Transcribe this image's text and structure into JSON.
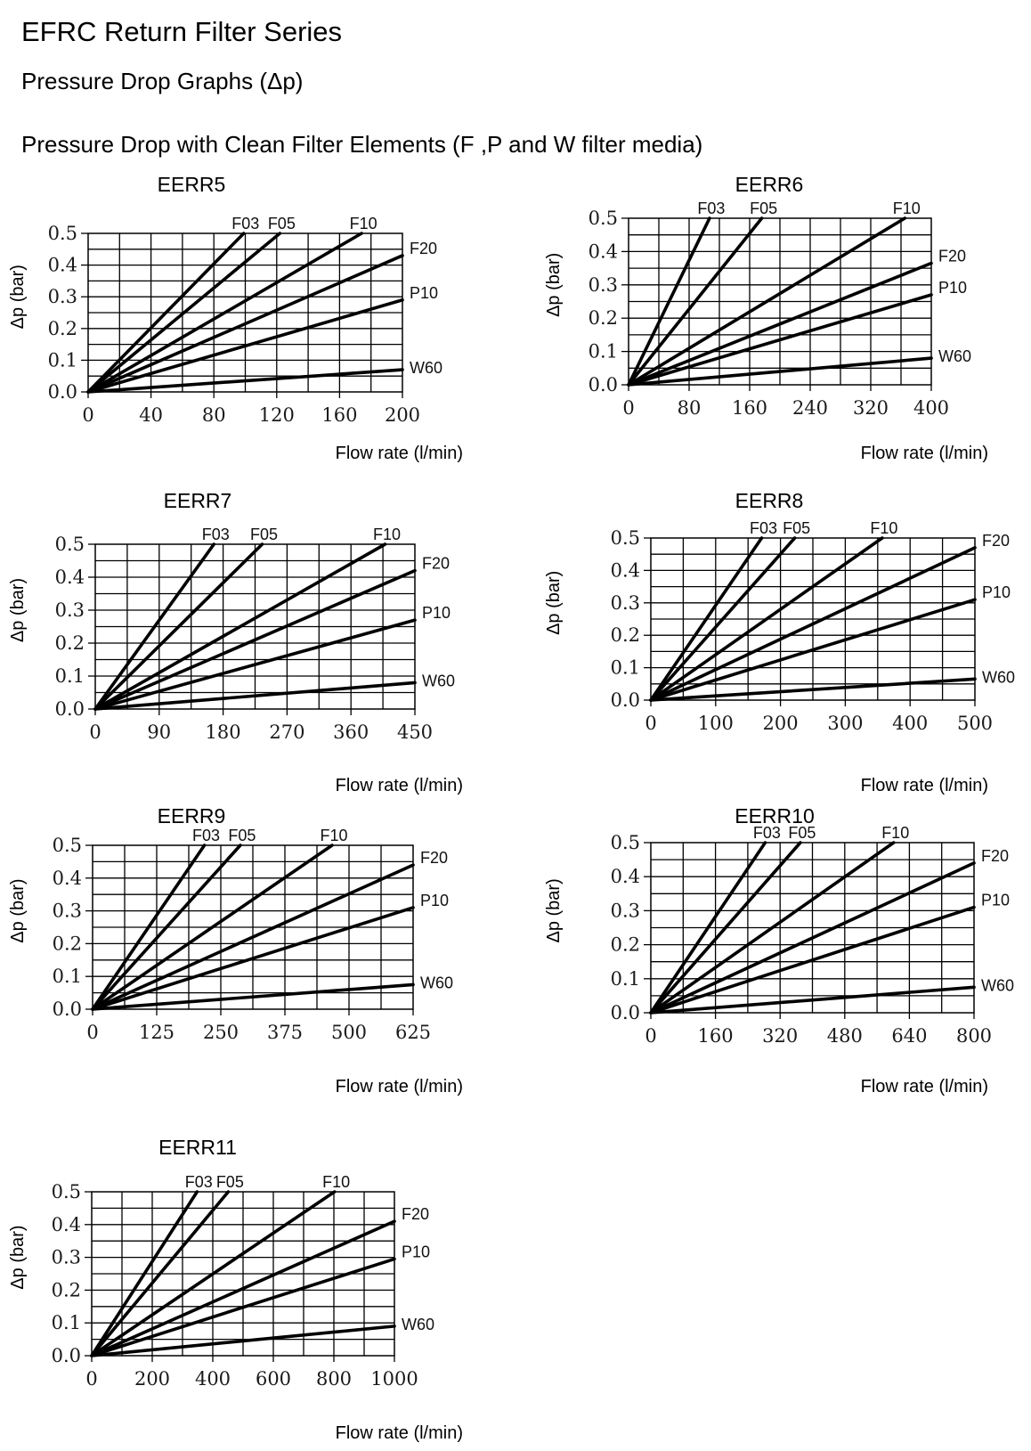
{
  "header": {
    "title": "EFRC Return Filter Series",
    "subtitle": "Pressure Drop Graphs (Δp)",
    "section": "Pressure Drop with Clean Filter Elements (F ,P and W filter media)"
  },
  "chart_data": [
    {
      "type": "line",
      "title": "EERR5",
      "xlabel": "Flow rate (l/min)",
      "ylabel": "Δp (bar)",
      "xlim": [
        0,
        200
      ],
      "ylim": [
        0,
        0.5
      ],
      "xticks": [
        "0",
        "40",
        "80",
        "120",
        "160",
        "200"
      ],
      "yticks": [
        "0.0",
        "0.1",
        "0.2",
        "0.3",
        "0.4",
        "0.5"
      ],
      "grid": true,
      "series": [
        {
          "name": "F03",
          "x": [
            0,
            99
          ],
          "y": [
            0,
            0.5
          ]
        },
        {
          "name": "F05",
          "x": [
            0,
            122
          ],
          "y": [
            0,
            0.5
          ]
        },
        {
          "name": "F10",
          "x": [
            0,
            174
          ],
          "y": [
            0,
            0.5
          ]
        },
        {
          "name": "F20",
          "x": [
            0,
            200
          ],
          "y": [
            0,
            0.43
          ]
        },
        {
          "name": "P10",
          "x": [
            0,
            200
          ],
          "y": [
            0,
            0.29
          ]
        },
        {
          "name": "W60",
          "x": [
            0,
            200
          ],
          "y": [
            0,
            0.07
          ]
        }
      ]
    },
    {
      "type": "line",
      "title": "EERR6",
      "xlabel": "Flow rate (l/min)",
      "ylabel": "Δp (bar)",
      "xlim": [
        0,
        400
      ],
      "ylim": [
        0,
        0.5
      ],
      "xticks": [
        "0",
        "80",
        "160",
        "240",
        "320",
        "400"
      ],
      "yticks": [
        "0.0",
        "0.1",
        "0.2",
        "0.3",
        "0.4",
        "0.5"
      ],
      "grid": true,
      "series": [
        {
          "name": "F03",
          "x": [
            0,
            107
          ],
          "y": [
            0,
            0.5
          ]
        },
        {
          "name": "F05",
          "x": [
            0,
            176
          ],
          "y": [
            0,
            0.5
          ]
        },
        {
          "name": "F10",
          "x": [
            0,
            365
          ],
          "y": [
            0,
            0.5
          ]
        },
        {
          "name": "F20",
          "x": [
            0,
            400
          ],
          "y": [
            0,
            0.365
          ]
        },
        {
          "name": "P10",
          "x": [
            0,
            400
          ],
          "y": [
            0,
            0.27
          ]
        },
        {
          "name": "W60",
          "x": [
            0,
            400
          ],
          "y": [
            0,
            0.08
          ]
        }
      ]
    },
    {
      "type": "line",
      "title": "EERR7",
      "xlabel": "Flow rate (l/min)",
      "ylabel": "Δp (bar)",
      "xlim": [
        0,
        450
      ],
      "ylim": [
        0,
        0.5
      ],
      "xticks": [
        "0",
        "90",
        "180",
        "270",
        "360",
        "450"
      ],
      "yticks": [
        "0.0",
        "0.1",
        "0.2",
        "0.3",
        "0.4",
        "0.5"
      ],
      "grid": true,
      "series": [
        {
          "name": "F03",
          "x": [
            0,
            167
          ],
          "y": [
            0,
            0.5
          ]
        },
        {
          "name": "F05",
          "x": [
            0,
            235
          ],
          "y": [
            0,
            0.5
          ]
        },
        {
          "name": "F10",
          "x": [
            0,
            408
          ],
          "y": [
            0,
            0.5
          ]
        },
        {
          "name": "F20",
          "x": [
            0,
            450
          ],
          "y": [
            0,
            0.42
          ]
        },
        {
          "name": "P10",
          "x": [
            0,
            450
          ],
          "y": [
            0,
            0.27
          ]
        },
        {
          "name": "W60",
          "x": [
            0,
            450
          ],
          "y": [
            0,
            0.08
          ]
        }
      ]
    },
    {
      "type": "line",
      "title": "EERR8",
      "xlabel": "Flow rate (l/min)",
      "ylabel": "Δp (bar)",
      "xlim": [
        0,
        500
      ],
      "ylim": [
        0,
        0.5
      ],
      "xticks": [
        "0",
        "100",
        "200",
        "300",
        "400",
        "500"
      ],
      "yticks": [
        "0.0",
        "0.1",
        "0.2",
        "0.3",
        "0.4",
        "0.5"
      ],
      "grid": true,
      "series": [
        {
          "name": "F03",
          "x": [
            0,
            171
          ],
          "y": [
            0,
            0.5
          ]
        },
        {
          "name": "F05",
          "x": [
            0,
            222
          ],
          "y": [
            0,
            0.5
          ]
        },
        {
          "name": "F10",
          "x": [
            0,
            357
          ],
          "y": [
            0,
            0.5
          ]
        },
        {
          "name": "F20",
          "x": [
            0,
            500
          ],
          "y": [
            0,
            0.47
          ]
        },
        {
          "name": "P10",
          "x": [
            0,
            500
          ],
          "y": [
            0,
            0.31
          ]
        },
        {
          "name": "W60",
          "x": [
            0,
            500
          ],
          "y": [
            0,
            0.065
          ]
        }
      ]
    },
    {
      "type": "line",
      "title": "EERR9",
      "xlabel": "Flow rate (l/min)",
      "ylabel": "Δp (bar)",
      "xlim": [
        0,
        625
      ],
      "ylim": [
        0,
        0.5
      ],
      "xticks": [
        "0",
        "125",
        "250",
        "375",
        "500",
        "625"
      ],
      "yticks": [
        "0.0",
        "0.1",
        "0.2",
        "0.3",
        "0.4",
        "0.5"
      ],
      "grid": true,
      "series": [
        {
          "name": "F03",
          "x": [
            0,
            218
          ],
          "y": [
            0,
            0.5
          ]
        },
        {
          "name": "F05",
          "x": [
            0,
            288
          ],
          "y": [
            0,
            0.5
          ]
        },
        {
          "name": "F10",
          "x": [
            0,
            467
          ],
          "y": [
            0,
            0.5
          ]
        },
        {
          "name": "F20",
          "x": [
            0,
            625
          ],
          "y": [
            0,
            0.44
          ]
        },
        {
          "name": "P10",
          "x": [
            0,
            625
          ],
          "y": [
            0,
            0.31
          ]
        },
        {
          "name": "W60",
          "x": [
            0,
            625
          ],
          "y": [
            0,
            0.075
          ]
        }
      ]
    },
    {
      "type": "line",
      "title": "EERR10",
      "xlabel": "Flow rate (l/min)",
      "ylabel": "Δp (bar)",
      "xlim": [
        0,
        800
      ],
      "ylim": [
        0,
        0.5
      ],
      "xticks": [
        "0",
        "160",
        "320",
        "480",
        "640",
        "800"
      ],
      "yticks": [
        "0.0",
        "0.1",
        "0.2",
        "0.3",
        "0.4",
        "0.5"
      ],
      "grid": true,
      "series": [
        {
          "name": "F03",
          "x": [
            0,
            283
          ],
          "y": [
            0,
            0.5
          ]
        },
        {
          "name": "F05",
          "x": [
            0,
            370
          ],
          "y": [
            0,
            0.5
          ]
        },
        {
          "name": "F10",
          "x": [
            0,
            601
          ],
          "y": [
            0,
            0.5
          ]
        },
        {
          "name": "F20",
          "x": [
            0,
            800
          ],
          "y": [
            0,
            0.44
          ]
        },
        {
          "name": "P10",
          "x": [
            0,
            800
          ],
          "y": [
            0,
            0.31
          ]
        },
        {
          "name": "W60",
          "x": [
            0,
            800
          ],
          "y": [
            0,
            0.075
          ]
        }
      ]
    },
    {
      "type": "line",
      "title": "EERR11",
      "xlabel": "Flow rate (l/min)",
      "ylabel": "Δp (bar)",
      "xlim": [
        0,
        1000
      ],
      "ylim": [
        0,
        0.5
      ],
      "xticks": [
        "0",
        "200",
        "400",
        "600",
        "800",
        "1000"
      ],
      "yticks": [
        "0.0",
        "0.1",
        "0.2",
        "0.3",
        "0.4",
        "0.5"
      ],
      "grid": true,
      "series": [
        {
          "name": "F03",
          "x": [
            0,
            348
          ],
          "y": [
            0,
            0.5
          ]
        },
        {
          "name": "F05",
          "x": [
            0,
            451
          ],
          "y": [
            0,
            0.5
          ]
        },
        {
          "name": "F10",
          "x": [
            0,
            802
          ],
          "y": [
            0,
            0.5
          ]
        },
        {
          "name": "F20",
          "x": [
            0,
            1000
          ],
          "y": [
            0,
            0.41
          ]
        },
        {
          "name": "P10",
          "x": [
            0,
            1000
          ],
          "y": [
            0,
            0.295
          ]
        },
        {
          "name": "W60",
          "x": [
            0,
            1000
          ],
          "y": [
            0,
            0.09
          ]
        }
      ]
    }
  ]
}
